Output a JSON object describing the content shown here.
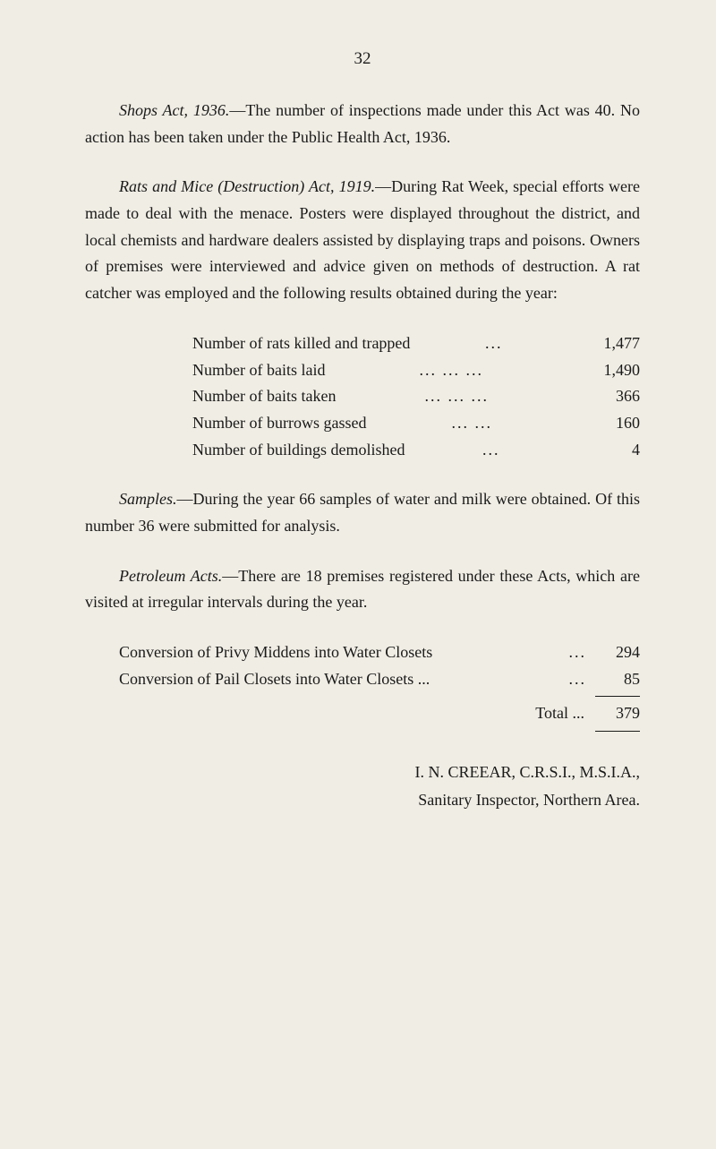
{
  "page_number": "32",
  "paragraphs": {
    "shops_act": {
      "lead_italic": "Shops Act, 1936.",
      "text": "—The number of inspections made under this Act was 40. No action has been taken under the Public Health Act, 1936."
    },
    "rats_mice": {
      "lead_italic": "Rats and Mice (Destruction) Act, 1919.",
      "text": "—During Rat Week, special efforts were made to deal with the menace. Posters were displayed throughout the district, and local chemists and hardware dealers assisted by displaying traps and poisons. Owners of premises were interviewed and advice given on methods of destruction. A rat catcher was employed and the following results obtained during the year:"
    },
    "samples": {
      "lead_italic": "Samples.",
      "text": "—During the year 66 samples of water and milk were obtained. Of this number 36 were submitted for analysis."
    },
    "petroleum": {
      "lead_italic": "Petroleum Acts.",
      "text": "—There are 18 premises registered under these Acts, which are visited at irregular intervals during the year."
    }
  },
  "rat_data": [
    {
      "label": "Number of rats killed and trapped",
      "dots": "...",
      "value": "1,477"
    },
    {
      "label": "Number of baits laid",
      "dots": "...     ...     ...",
      "value": "1,490"
    },
    {
      "label": "Number of baits taken",
      "dots": "...     ...     ...",
      "value": "366"
    },
    {
      "label": "Number of burrows gassed",
      "dots": "...     ...",
      "value": "160"
    },
    {
      "label": "Number of buildings demolished",
      "dots": "...",
      "value": "4"
    }
  ],
  "conversion_data": [
    {
      "label": "Conversion of Privy Middens into Water Closets",
      "dots": "...",
      "value": "294"
    },
    {
      "label": "Conversion of Pail Closets into Water Closets ...",
      "dots": "...",
      "value": "85"
    }
  ],
  "total": {
    "label": "Total   ...",
    "value": "379"
  },
  "signature": {
    "name": "I. N. CREEAR, C.R.S.I., M.S.I.A.,",
    "title": "Sanitary Inspector, Northern Area."
  }
}
